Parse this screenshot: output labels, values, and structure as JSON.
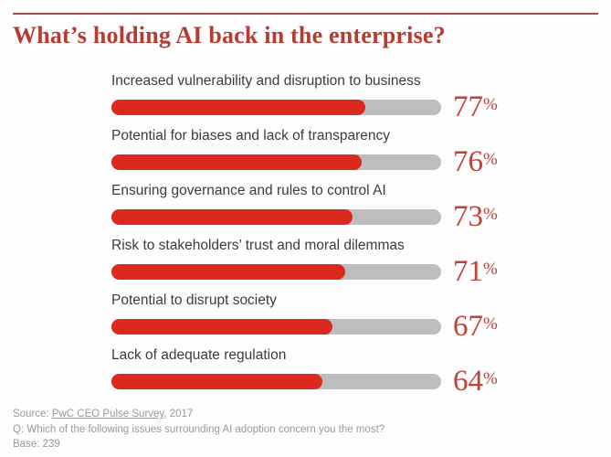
{
  "title": "What’s holding AI back in the enterprise?",
  "colors": {
    "bar_red": "#dc291e",
    "track_gray": "#bdbdbd",
    "title_red": "#b63b32",
    "pct_red": "#be4238",
    "rule_red": "#b0493f"
  },
  "chart_data": {
    "type": "bar",
    "orientation": "horizontal",
    "title": "What’s holding AI back in the enterprise?",
    "categories": [
      "Increased vulnerability and disruption to business",
      "Potential for biases and lack of transparency",
      "Ensuring governance and rules to control AI",
      "Risk to stakeholders’ trust and moral dilemmas",
      "Potential to disrupt society",
      "Lack of adequate regulation"
    ],
    "values": [
      77,
      76,
      73,
      71,
      67,
      64
    ],
    "unit": "%",
    "xlim": [
      0,
      100
    ],
    "grid": false,
    "legend": false,
    "value_labels_position": "right-of-bar"
  },
  "footer": {
    "source_prefix": "Source: ",
    "source_link": "PwC CEO Pulse Survey",
    "source_suffix": ", 2017",
    "question": "Q: Which of the following issues surrounding AI adoption concern you the most?",
    "base": "Base: 239"
  }
}
